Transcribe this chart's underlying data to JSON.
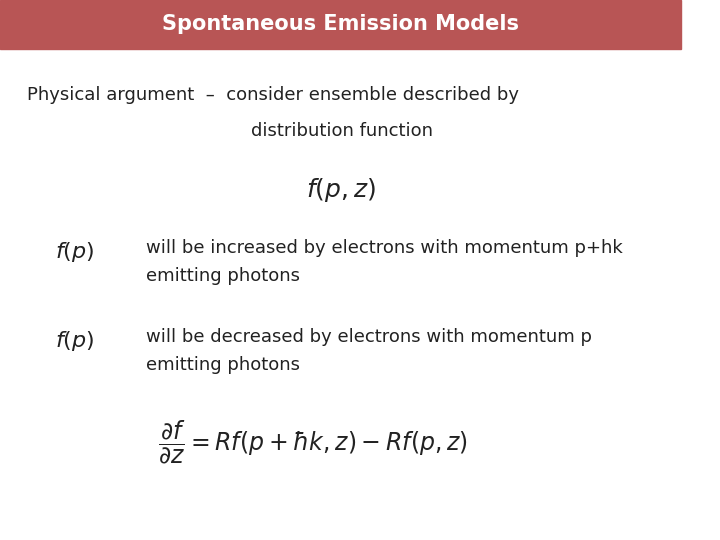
{
  "title": "Spontaneous Emission Models",
  "title_bg_color": "#b85555",
  "title_text_color": "#ffffff",
  "slide_bg_color": "#ffffff",
  "title_fontsize": 15,
  "body_fontsize": 13,
  "math_fontsize": 14,
  "line1_text": "Physical argument  –  consider ensemble described by",
  "line2_text": "distribution function",
  "formula1": "$f(p,z)$",
  "label_fp": "$f(p)$",
  "text_increased_1": "will be increased by electrons with momentum p+hk",
  "text_increased_2": "emitting photons",
  "text_decreased_1": "will be decreased by electrons with momentum p",
  "text_decreased_2": "emitting photons",
  "formula2": "$\\dfrac{\\partial f}{\\partial z} = Rf(p+\\hbar k,z) - Rf(p,z)$"
}
